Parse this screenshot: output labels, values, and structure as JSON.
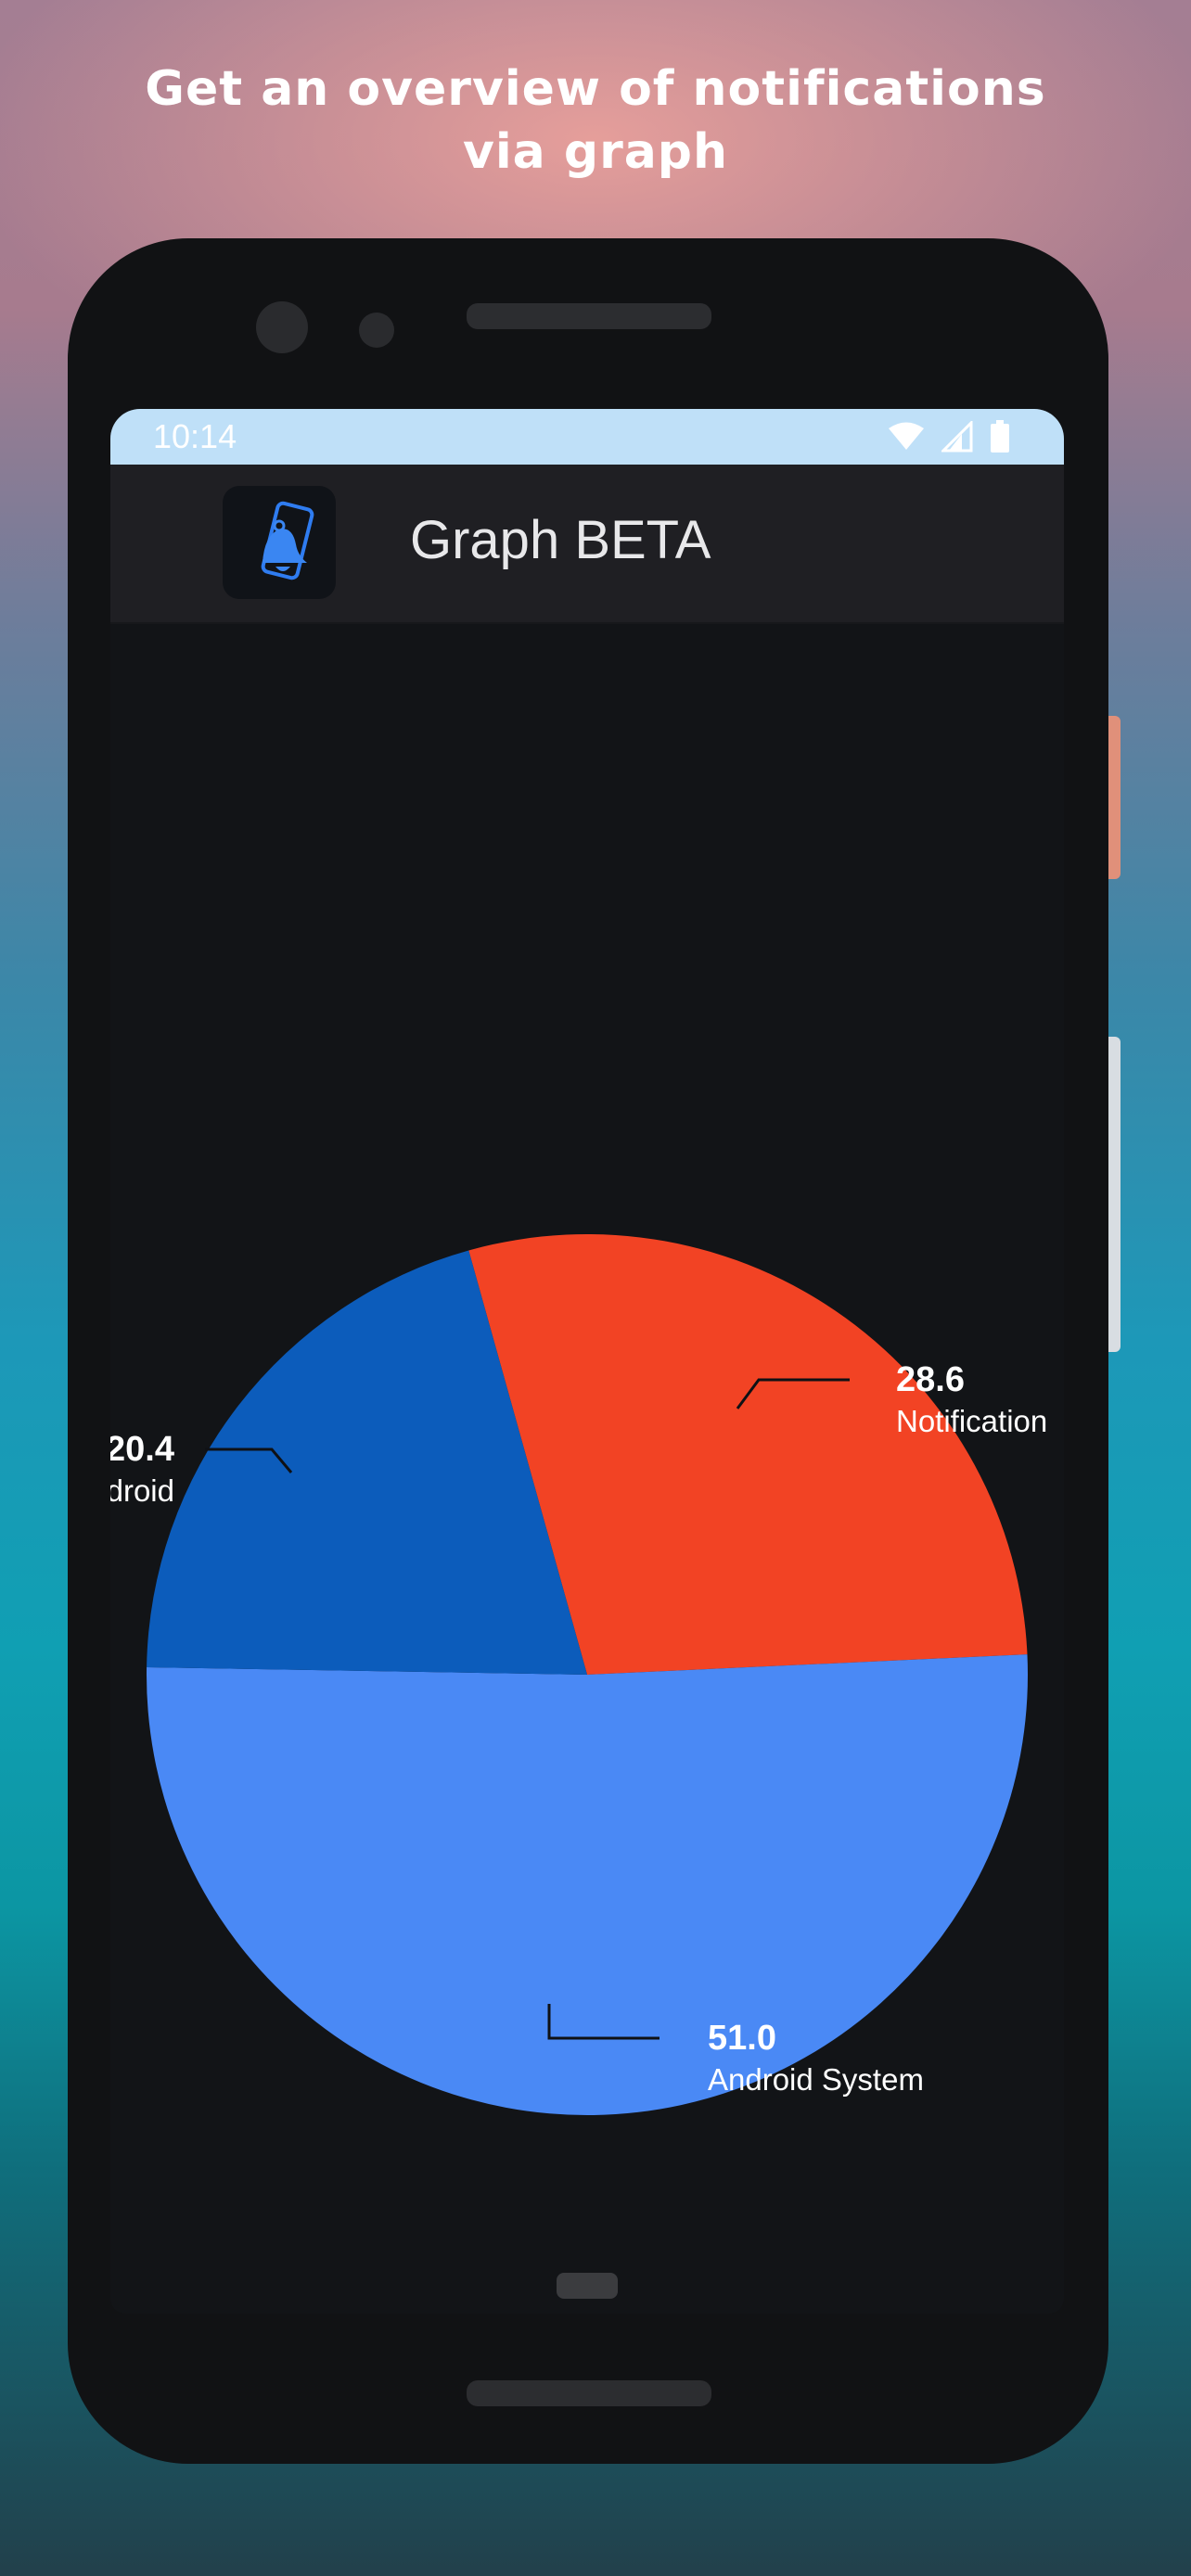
{
  "promo": {
    "line1": "Get an overview of notifications",
    "line2": "via graph"
  },
  "status_bar": {
    "time": "10:14",
    "icons": [
      "wifi-icon",
      "cellular-signal-icon",
      "battery-icon"
    ]
  },
  "app_bar": {
    "icon": "notification-bell-phone-icon",
    "title": "Graph BETA"
  },
  "colors": {
    "notification": "#f24324",
    "android": "#0c5cbb",
    "android_system": "#4a89f5",
    "screen_bg": "#121417",
    "status_bar": "#bfe0f8"
  },
  "chart_data": {
    "type": "pie",
    "slices": [
      {
        "label": "Notification",
        "value": 28.6,
        "value_label": "28.6",
        "color": "#f24324"
      },
      {
        "label": "Android System",
        "value": 51.0,
        "value_label": "51.0",
        "color": "#4a89f5"
      },
      {
        "label": "Android",
        "value": 20.4,
        "value_label": "20.4",
        "color": "#0c5cbb"
      }
    ]
  }
}
